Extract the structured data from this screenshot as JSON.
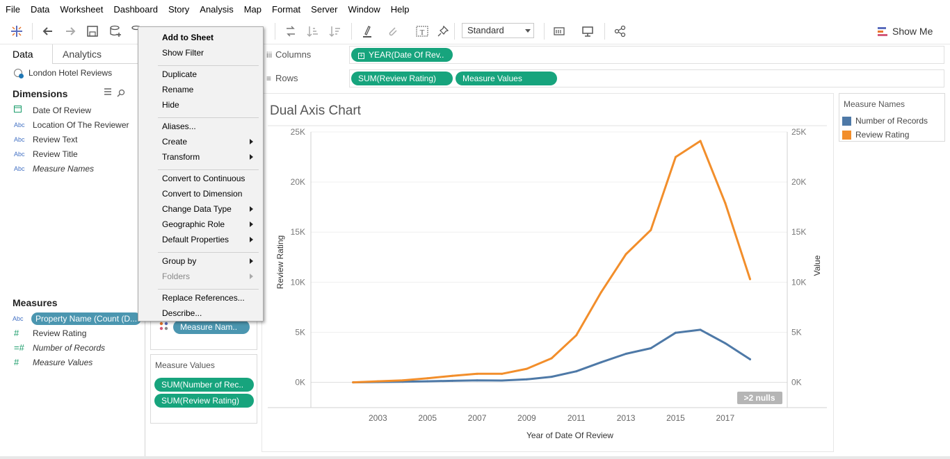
{
  "menubar": {
    "items": [
      "File",
      "Data",
      "Worksheet",
      "Dashboard",
      "Story",
      "Analysis",
      "Map",
      "Format",
      "Server",
      "Window",
      "Help"
    ]
  },
  "toolbar": {
    "fit_value": "Standard",
    "show_me_label": "Show Me",
    "icons": [
      "tableau-logo-icon",
      "undo-icon",
      "redo-icon",
      "save-icon",
      "new-datasource-icon",
      "swap-icon",
      "sort-ascending-icon",
      "sort-descending-icon",
      "highlight-icon",
      "attach-icon",
      "text-label-icon",
      "pin-icon",
      "cards-icon",
      "presentation-icon",
      "share-icon"
    ]
  },
  "data_pane": {
    "tabs": [
      "Data",
      "Analytics"
    ],
    "datasource": "London Hotel Reviews",
    "dimensions_title": "Dimensions",
    "dimensions": [
      {
        "type": "date",
        "name": "Date Of Review",
        "italic": false
      },
      {
        "type": "Abc",
        "name": "Location Of The Reviewer",
        "italic": false
      },
      {
        "type": "Abc",
        "name": "Review Text",
        "italic": false
      },
      {
        "type": "Abc",
        "name": "Review Title",
        "italic": false
      },
      {
        "type": "Abc",
        "name": "Measure Names",
        "italic": true
      }
    ],
    "measures_title": "Measures",
    "measures": [
      {
        "type": "Abc",
        "name": "Property Name (Count (D...",
        "selected": true
      },
      {
        "type": "#",
        "name": "Review Rating",
        "italic": false
      },
      {
        "type": "=#",
        "name": "Number of Records",
        "italic": true
      },
      {
        "type": "#",
        "name": "Measure Values",
        "italic": true
      }
    ]
  },
  "shelves": {
    "columns_label": "Columns",
    "rows_label": "Rows",
    "columns_pills": [
      "YEAR(Date Of Rev.."
    ],
    "rows_pills": [
      "SUM(Review Rating)",
      "Measure Values"
    ]
  },
  "marks": {
    "measure_names_pill": "Measure Nam.."
  },
  "measure_values_card": {
    "title": "Measure Values",
    "pills": [
      "SUM(Number of Rec..",
      "SUM(Review Rating)"
    ]
  },
  "context_menu": {
    "items": [
      {
        "label": "Add to Sheet",
        "bold": true
      },
      {
        "label": "Show Filter"
      },
      {
        "sep": true
      },
      {
        "label": "Duplicate"
      },
      {
        "label": "Rename"
      },
      {
        "label": "Hide"
      },
      {
        "sep": true
      },
      {
        "label": "Aliases..."
      },
      {
        "label": "Create",
        "submenu": true
      },
      {
        "label": "Transform",
        "submenu": true
      },
      {
        "sep": true
      },
      {
        "label": "Convert to Continuous"
      },
      {
        "label": "Convert to Dimension"
      },
      {
        "label": "Change Data Type",
        "submenu": true
      },
      {
        "label": "Geographic Role",
        "submenu": true
      },
      {
        "label": "Default Properties",
        "submenu": true
      },
      {
        "sep": true
      },
      {
        "label": "Group by",
        "submenu": true
      },
      {
        "label": "Folders",
        "submenu": true,
        "disabled": true
      },
      {
        "sep": true
      },
      {
        "label": "Replace References..."
      },
      {
        "label": "Describe..."
      }
    ]
  },
  "legend": {
    "title": "Measure Names",
    "items": [
      {
        "name": "Number of Records",
        "color": "#4e79a7"
      },
      {
        "name": "Review Rating",
        "color": "#f28e2b"
      }
    ]
  },
  "chart_data": {
    "type": "line",
    "title": "Dual Axis Chart",
    "xlabel": "Year of Date Of Review",
    "ylabel_left": "Review Rating",
    "ylabel_right": "Value",
    "x": [
      2002,
      2003,
      2004,
      2005,
      2006,
      2007,
      2008,
      2009,
      2010,
      2011,
      2012,
      2013,
      2014,
      2015,
      2016,
      2017,
      2018
    ],
    "x_ticks": [
      "2003",
      "2005",
      "2007",
      "2009",
      "2011",
      "2013",
      "2015",
      "2017"
    ],
    "x_tick_values": [
      2003,
      2005,
      2007,
      2009,
      2011,
      2013,
      2015,
      2017
    ],
    "xlim": [
      2000.3,
      2019.5
    ],
    "ylim": [
      -1000,
      25000
    ],
    "y_ticks": [
      "0K",
      "5K",
      "10K",
      "15K",
      "20K",
      "25K"
    ],
    "y_tick_values": [
      0,
      5000,
      10000,
      15000,
      20000,
      25000
    ],
    "series": [
      {
        "name": "Number of Records",
        "color": "#4e79a7",
        "values": [
          0,
          30,
          60,
          100,
          150,
          200,
          180,
          300,
          550,
          1100,
          2000,
          2850,
          3400,
          4950,
          5250,
          3900,
          2300
        ]
      },
      {
        "name": "Review Rating",
        "color": "#f28e2b",
        "values": [
          0,
          100,
          200,
          400,
          650,
          850,
          850,
          1350,
          2400,
          4700,
          9000,
          12800,
          15200,
          22500,
          24100,
          17900,
          10300
        ]
      }
    ],
    "nulls_indicator": ">2 nulls",
    "grid": true
  }
}
